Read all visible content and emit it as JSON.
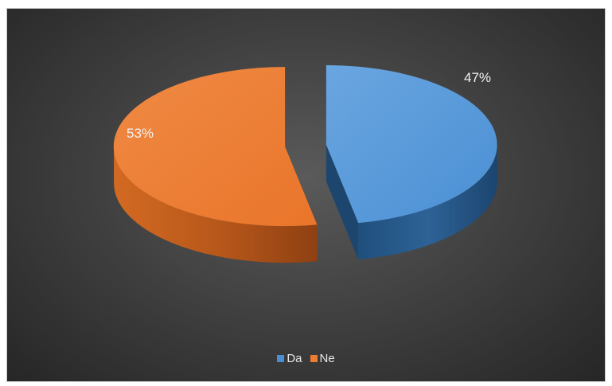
{
  "chart_data": {
    "type": "pie",
    "title": "",
    "style": "3d-exploded",
    "background": "#3b3b3b",
    "slices": [
      {
        "label": "Da",
        "value": 47,
        "data_label": "47%",
        "color": "#4a8fd4"
      },
      {
        "label": "Ne",
        "value": 53,
        "data_label": "53%",
        "color": "#ed7d31"
      }
    ],
    "legend": {
      "position": "bottom",
      "entries": [
        "Da",
        "Ne"
      ]
    }
  }
}
